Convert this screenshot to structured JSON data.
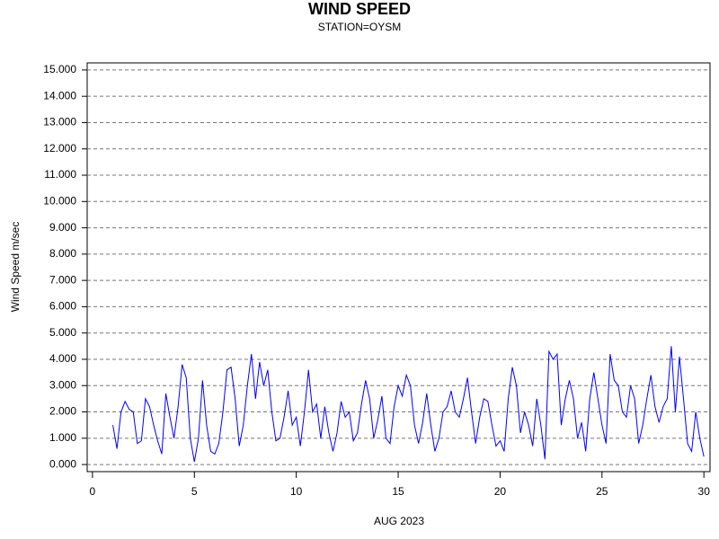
{
  "chart_data": {
    "type": "line",
    "title": "WIND SPEED",
    "subtitle": "STATION=OYSM",
    "x_label": "AUG 2023",
    "y_label": "Wind Speed m/sec",
    "x": [
      1.0,
      1.2,
      1.4,
      1.6,
      1.8,
      2.0,
      2.2,
      2.4,
      2.6,
      2.8,
      3.0,
      3.2,
      3.4,
      3.6,
      3.8,
      4.0,
      4.2,
      4.4,
      4.6,
      4.8,
      5.0,
      5.2,
      5.4,
      5.6,
      5.8,
      6.0,
      6.2,
      6.4,
      6.6,
      6.8,
      7.0,
      7.2,
      7.4,
      7.6,
      7.8,
      8.0,
      8.2,
      8.4,
      8.6,
      8.8,
      9.0,
      9.2,
      9.4,
      9.6,
      9.8,
      10.0,
      10.2,
      10.4,
      10.6,
      10.8,
      11.0,
      11.2,
      11.4,
      11.6,
      11.8,
      12.0,
      12.2,
      12.4,
      12.6,
      12.8,
      13.0,
      13.2,
      13.4,
      13.6,
      13.8,
      14.0,
      14.2,
      14.4,
      14.6,
      14.8,
      15.0,
      15.2,
      15.4,
      15.6,
      15.8,
      16.0,
      16.2,
      16.4,
      16.6,
      16.8,
      17.0,
      17.2,
      17.4,
      17.6,
      17.8,
      18.0,
      18.2,
      18.4,
      18.6,
      18.8,
      19.0,
      19.2,
      19.4,
      19.6,
      19.8,
      20.0,
      20.2,
      20.4,
      20.6,
      20.8,
      21.0,
      21.2,
      21.4,
      21.6,
      21.8,
      22.0,
      22.2,
      22.4,
      22.6,
      22.8,
      23.0,
      23.2,
      23.4,
      23.6,
      23.8,
      24.0,
      24.2,
      24.4,
      24.6,
      24.8,
      25.0,
      25.2,
      25.4,
      25.6,
      25.8,
      26.0,
      26.2,
      26.4,
      26.6,
      26.8,
      27.0,
      27.2,
      27.4,
      27.6,
      27.8,
      28.0,
      28.2,
      28.4,
      28.6,
      28.8,
      29.0,
      29.2,
      29.4,
      29.6,
      29.8,
      30.0
    ],
    "series": [
      {
        "name": "Wind Speed",
        "color": "#0000ff",
        "values": [
          1.5,
          0.6,
          2.0,
          2.4,
          2.1,
          2.0,
          0.8,
          0.9,
          2.5,
          2.2,
          1.5,
          0.9,
          0.4,
          2.7,
          1.8,
          1.0,
          2.2,
          3.8,
          3.3,
          1.0,
          0.1,
          1.0,
          3.2,
          1.5,
          0.5,
          0.4,
          0.8,
          2.0,
          3.6,
          3.7,
          2.5,
          0.7,
          1.5,
          3.0,
          4.2,
          2.5,
          3.9,
          3.0,
          3.6,
          2.0,
          0.9,
          1.0,
          1.8,
          2.8,
          1.5,
          1.8,
          0.7,
          2.0,
          3.6,
          2.0,
          2.3,
          1.0,
          2.2,
          1.2,
          0.5,
          1.2,
          2.4,
          1.8,
          2.0,
          0.9,
          1.2,
          2.3,
          3.2,
          2.5,
          1.0,
          1.7,
          2.6,
          1.0,
          0.8,
          2.2,
          3.0,
          2.6,
          3.4,
          3.0,
          1.5,
          0.8,
          1.6,
          2.7,
          1.5,
          0.5,
          1.0,
          2.0,
          2.2,
          2.8,
          2.0,
          1.8,
          2.5,
          3.3,
          2.0,
          0.8,
          1.8,
          2.5,
          2.4,
          1.5,
          0.7,
          0.9,
          0.5,
          2.5,
          3.7,
          3.0,
          1.2,
          2.0,
          1.5,
          0.7,
          2.5,
          1.5,
          0.2,
          4.3,
          4.0,
          4.2,
          1.5,
          2.5,
          3.2,
          2.5,
          1.0,
          1.6,
          0.5,
          2.5,
          3.5,
          2.5,
          1.5,
          0.8,
          4.2,
          3.2,
          3.0,
          2.0,
          1.8,
          3.0,
          2.5,
          0.8,
          1.5,
          2.5,
          3.4,
          2.2,
          1.6,
          2.2,
          2.5,
          4.5,
          2.0,
          4.1,
          2.5,
          0.8,
          0.5,
          2.0,
          1.0,
          0.3
        ]
      }
    ],
    "xlim": [
      -0.26,
      30.3
    ],
    "xticks": [
      0,
      5,
      10,
      15,
      20,
      25,
      30
    ],
    "ylim": [
      -0.27,
      15.27
    ],
    "yticks": [
      {
        "value": 0,
        "label": "0.000"
      },
      {
        "value": 1,
        "label": "1.000"
      },
      {
        "value": 2,
        "label": "2.000"
      },
      {
        "value": 3,
        "label": "3.000"
      },
      {
        "value": 4,
        "label": "4.000"
      },
      {
        "value": 5,
        "label": "5.000"
      },
      {
        "value": 6,
        "label": "6.000"
      },
      {
        "value": 7,
        "label": "7.000"
      },
      {
        "value": 8,
        "label": "8.000"
      },
      {
        "value": 9,
        "label": "9.000"
      },
      {
        "value": 10,
        "label": "10.000"
      },
      {
        "value": 11,
        "label": "11.000"
      },
      {
        "value": 12,
        "label": "12.000"
      },
      {
        "value": 13,
        "label": "13.000"
      },
      {
        "value": 14,
        "label": "14.000"
      },
      {
        "value": 15,
        "label": "15.000"
      }
    ],
    "grid": true
  }
}
